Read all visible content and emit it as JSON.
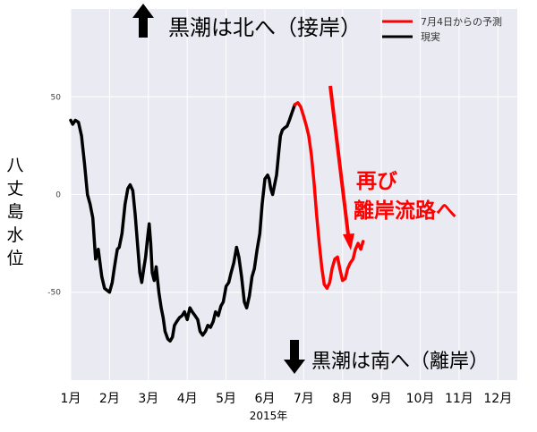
{
  "chart_data": {
    "type": "line",
    "xlabel": "2015年",
    "ylabel": "八丈島水位",
    "x_ticks": [
      "1月",
      "2月",
      "3月",
      "4月",
      "5月",
      "6月",
      "7月",
      "8月",
      "9月",
      "10月",
      "11月",
      "12月"
    ],
    "y_ticks": [
      50,
      0,
      -50
    ],
    "xlim": [
      1,
      12.5
    ],
    "ylim": [
      -95,
      95
    ],
    "grid": true,
    "legend_position": "top-right",
    "series": [
      {
        "name": "現実",
        "color": "#000000",
        "x": [
          1.0,
          1.05,
          1.12,
          1.2,
          1.28,
          1.36,
          1.43,
          1.5,
          1.57,
          1.64,
          1.71,
          1.8,
          1.87,
          1.93,
          2.0,
          2.07,
          2.12,
          2.16,
          2.2,
          2.25,
          2.32,
          2.4,
          2.47,
          2.53,
          2.6,
          2.66,
          2.72,
          2.78,
          2.83,
          2.88,
          2.93,
          2.98,
          3.02,
          3.06,
          3.1,
          3.15,
          3.2,
          3.27,
          3.33,
          3.38,
          3.43,
          3.5,
          3.56,
          3.62,
          3.67,
          3.73,
          3.8,
          3.87,
          3.93,
          4.0,
          4.07,
          4.13,
          4.2,
          4.27,
          4.33,
          4.4,
          4.47,
          4.53,
          4.6,
          4.67,
          4.73,
          4.8,
          4.87,
          4.93,
          5.0,
          5.07,
          5.13,
          5.2,
          5.27,
          5.33,
          5.4,
          5.47,
          5.53,
          5.6,
          5.67,
          5.73,
          5.8,
          5.87,
          5.93,
          6.0,
          6.07,
          6.11,
          6.15,
          6.2,
          6.25,
          6.3,
          6.35,
          6.4,
          6.45,
          6.5,
          6.57,
          6.63,
          6.7,
          6.77
        ],
        "y": [
          38,
          36,
          38,
          37,
          30,
          15,
          0,
          -5,
          -12,
          -33,
          -28,
          -42,
          -48,
          -49,
          -50,
          -45,
          -38,
          -33,
          -28,
          -27,
          -20,
          -5,
          3,
          5,
          2,
          -10,
          -25,
          -40,
          -45,
          -38,
          -32,
          -22,
          -15,
          -25,
          -40,
          -44,
          -37,
          -50,
          -58,
          -63,
          -70,
          -74,
          -75,
          -73,
          -67,
          -65,
          -63,
          -62,
          -60,
          -64,
          -58,
          -60,
          -62,
          -64,
          -70,
          -72,
          -70,
          -67,
          -68,
          -65,
          -60,
          -62,
          -57,
          -55,
          -47,
          -45,
          -40,
          -35,
          -27,
          -32,
          -42,
          -55,
          -58,
          -52,
          -42,
          -38,
          -28,
          -20,
          -5,
          8,
          10,
          8,
          3,
          0,
          5,
          10,
          20,
          30,
          33,
          34,
          35,
          38,
          42,
          46
        ]
      },
      {
        "name": "7月4日からの予測",
        "color": "#ff0000",
        "x": [
          6.77,
          6.85,
          6.92,
          7.0,
          7.07,
          7.13,
          7.2,
          7.27,
          7.33,
          7.4,
          7.47,
          7.53,
          7.6,
          7.67,
          7.73,
          7.8,
          7.87,
          7.93,
          8.0,
          8.07,
          8.13,
          8.2,
          8.27,
          8.33,
          8.4,
          8.47,
          8.53
        ],
        "y": [
          46,
          47,
          45,
          40,
          35,
          30,
          20,
          5,
          -10,
          -25,
          -38,
          -46,
          -48,
          -45,
          -38,
          -33,
          -32,
          -38,
          -44,
          -43,
          -38,
          -35,
          -33,
          -28,
          -25,
          -28,
          -24
        ]
      }
    ],
    "annotations": {
      "top_text": "黒潮は北へ（接岸）",
      "bottom_text": "黒潮は南へ（離岸）",
      "red_line1": "再び",
      "red_line2": "離岸流路へ"
    },
    "colors": {
      "plot_bg": "#eaeaf2",
      "grid": "#ffffff",
      "annotation_red": "#ff0000",
      "arrow": "#000000"
    }
  }
}
